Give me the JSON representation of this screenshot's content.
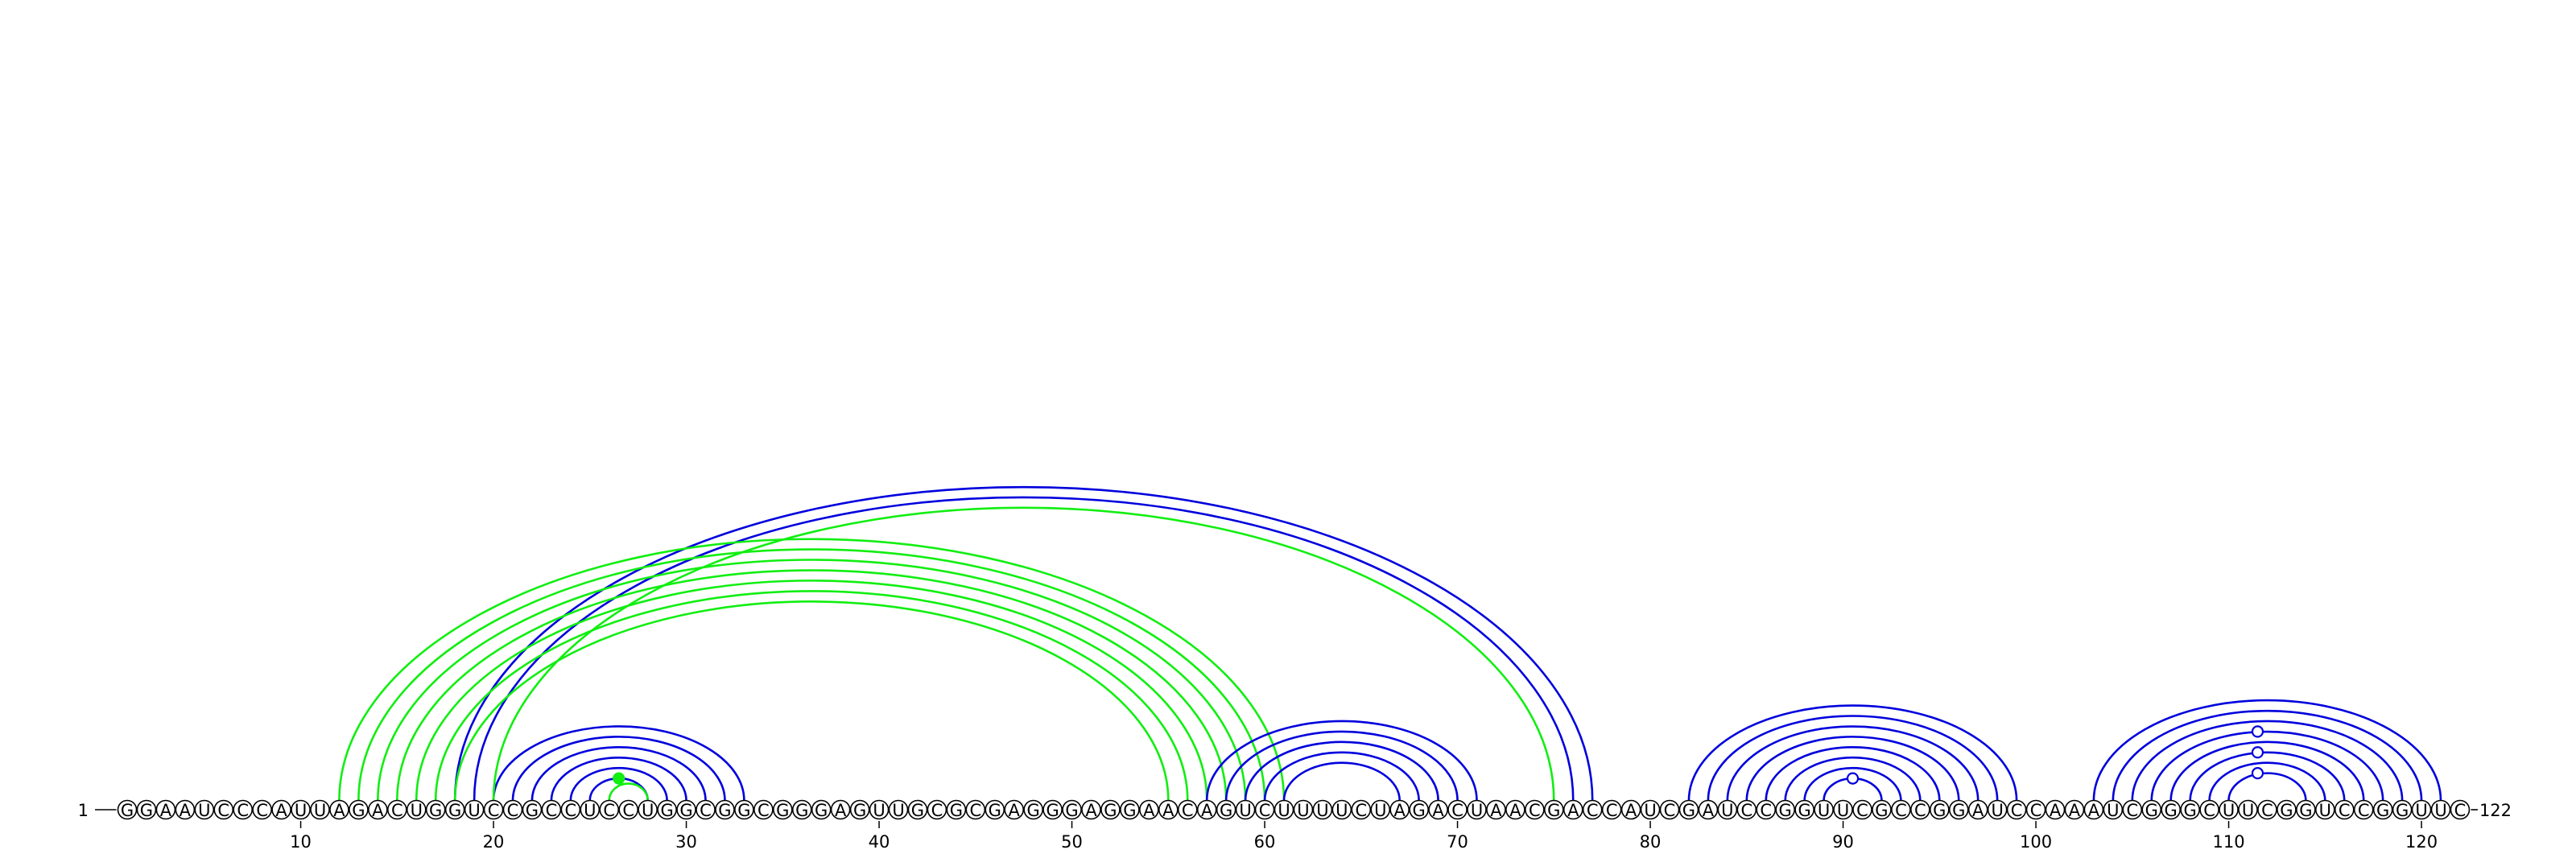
{
  "sequence": "GGAAUCCCAUUAGACUGGUCCGCCUCCUGGCGGCGGGAGUUGCGCGAGGGAGGAACAGUCUUUUCUAGACUAACGACCAUCGAUCCGGUUCGCCGGAUCCAAAUCGGGCUUCGGUCCGGUUC",
  "length": 122,
  "start_label": "1",
  "end_label": "122",
  "tick_positions": [
    10,
    20,
    30,
    40,
    50,
    60,
    70,
    80,
    90,
    100,
    110,
    120
  ],
  "tick_labels": [
    "10",
    "20",
    "30",
    "40",
    "50",
    "60",
    "70",
    "80",
    "90",
    "100",
    "110",
    "120"
  ],
  "colors": {
    "blue": "#0000dd",
    "green": "#11ee11",
    "text": "#000000"
  },
  "arc_groups": [
    {
      "color": "blue",
      "pairs": [
        [
          20,
          33
        ],
        [
          21,
          32
        ],
        [
          22,
          31
        ],
        [
          23,
          30
        ],
        [
          24,
          29
        ],
        [
          25,
          28
        ]
      ]
    },
    {
      "color": "green",
      "pairs": [
        [
          26,
          28
        ]
      ]
    },
    {
      "color": "blue",
      "pairs": [
        [
          18,
          77
        ],
        [
          19,
          76
        ]
      ]
    },
    {
      "color": "green",
      "pairs": [
        [
          20,
          75
        ]
      ]
    },
    {
      "color": "green",
      "pairs": [
        [
          12,
          61
        ],
        [
          13,
          60
        ],
        [
          14,
          59
        ],
        [
          15,
          58
        ],
        [
          16,
          57
        ],
        [
          17,
          56
        ],
        [
          18,
          55
        ]
      ]
    },
    {
      "color": "blue",
      "pairs": [
        [
          57,
          71
        ],
        [
          58,
          70
        ],
        [
          59,
          69
        ],
        [
          60,
          68
        ],
        [
          61,
          67
        ]
      ]
    },
    {
      "color": "blue",
      "pairs": [
        [
          82,
          99
        ],
        [
          83,
          98
        ],
        [
          84,
          97
        ],
        [
          85,
          96
        ],
        [
          86,
          95
        ],
        [
          87,
          94
        ],
        [
          88,
          93
        ],
        [
          89,
          92
        ]
      ]
    },
    {
      "color": "blue",
      "pairs": [
        [
          103,
          121
        ],
        [
          104,
          120
        ],
        [
          105,
          119
        ],
        [
          106,
          118
        ],
        [
          107,
          117
        ],
        [
          108,
          116
        ],
        [
          109,
          115
        ],
        [
          110,
          114
        ]
      ]
    }
  ],
  "markers": [
    {
      "pos": 26.5,
      "pair": [
        25,
        28
      ],
      "color": "green",
      "filled": true
    },
    {
      "pos": 90.5,
      "pair": [
        89,
        92
      ],
      "color": "blue",
      "filled": false
    },
    {
      "pos": 111.5,
      "pair": [
        110,
        114
      ],
      "color": "blue",
      "filled": false
    },
    {
      "pos": 111.5,
      "pair": [
        108,
        116
      ],
      "color": "blue",
      "filled": false
    },
    {
      "pos": 111.5,
      "pair": [
        106,
        118
      ],
      "color": "blue",
      "filled": false
    }
  ]
}
